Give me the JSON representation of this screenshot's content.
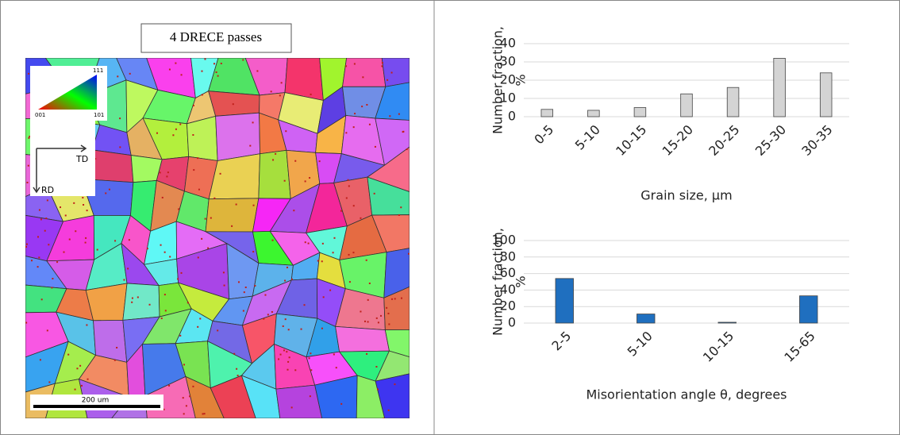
{
  "panel": {
    "title": "4 DRECE passes",
    "scale_bar": "200 um",
    "td": "TD",
    "rd": "RD",
    "ipf_111": "111",
    "ipf_001": "001",
    "ipf_101": "101"
  },
  "chart_data": [
    {
      "type": "bar",
      "ylabel": [
        "Number fraction,",
        "%"
      ],
      "xlabel": "Grain size, μm",
      "categories": [
        "0-5",
        "5-10",
        "10-15",
        "15-20",
        "20-25",
        "25-30",
        "30-35"
      ],
      "values": [
        4,
        3.5,
        5,
        12.5,
        16,
        32,
        24
      ],
      "color": "#d4d4d4",
      "ylim": [
        0,
        40
      ],
      "yticks": [
        0,
        10,
        20,
        30,
        40
      ],
      "grid": true
    },
    {
      "type": "bar",
      "ylabel": [
        "Number fraction,",
        "%"
      ],
      "xlabel": "Misorientation angle θ, degrees",
      "categories": [
        "2-5",
        "5-10",
        "10-15",
        "15-65"
      ],
      "values": [
        54,
        11,
        1,
        33
      ],
      "color": "#1f6fbf",
      "ylim": [
        0,
        100
      ],
      "yticks": [
        0,
        20,
        40,
        60,
        80,
        100
      ],
      "grid": true
    }
  ]
}
